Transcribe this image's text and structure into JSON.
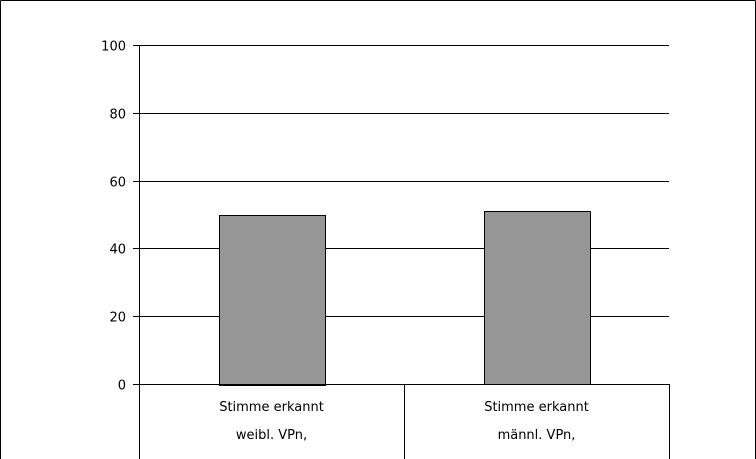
{
  "chart_data": {
    "type": "bar",
    "categories": [
      [
        "Stimme erkannt",
        "weibl. VPn,"
      ],
      [
        "Stimme erkannt",
        "männl. VPn,"
      ]
    ],
    "series": [
      {
        "values": [
          50,
          51
        ]
      }
    ],
    "ylim": [
      0,
      100
    ],
    "yticks": [
      0,
      20,
      40,
      60,
      80,
      100
    ],
    "grid": true,
    "bar_color": "#969696",
    "title": "",
    "xlabel": "",
    "ylabel": ""
  }
}
